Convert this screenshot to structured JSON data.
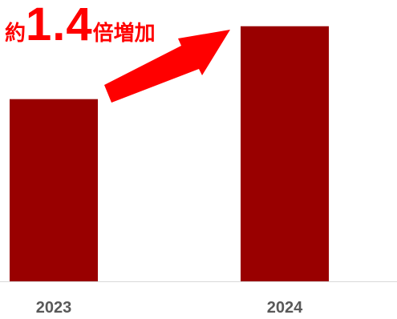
{
  "chart_data": {
    "type": "bar",
    "categories": [
      "2023",
      "2024"
    ],
    "values": [
      1.0,
      1.4
    ],
    "ylim": [
      0,
      1.5
    ],
    "grid": false,
    "colors": {
      "bar": "#990000",
      "annotation": "#ff0000",
      "tick_label": "#595959",
      "axis": "#d9d9d9"
    },
    "annotation": {
      "prefix": "約",
      "value": "1.4",
      "suffix": "倍増加"
    },
    "arrow": "up-right-arrow"
  }
}
